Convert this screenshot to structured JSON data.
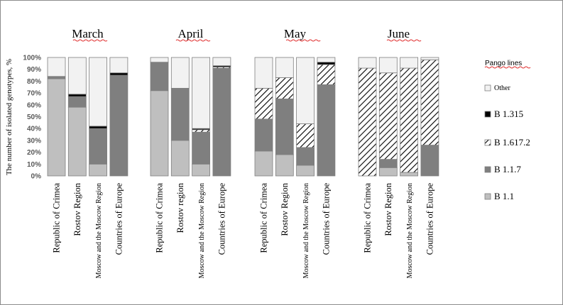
{
  "chart_data": {
    "type": "bar",
    "stacked": true,
    "percent": true,
    "ylabel": "The number of isolated genotypes, %",
    "ylim": [
      0,
      100
    ],
    "yticks": [
      "0%",
      "10%",
      "20%",
      "30%",
      "40%",
      "50%",
      "60%",
      "70%",
      "80%",
      "90%",
      "100%"
    ],
    "grid": false,
    "legend_title": "Pango lines",
    "legend_placement": "right",
    "legend": [
      "Other",
      "B 1.315",
      "B 1.617.2",
      "B 1.1.7",
      "B 1.1"
    ],
    "series_order_bottom_to_top": [
      "B 1.1",
      "B 1.1.7",
      "B 1.617.2",
      "B 1.315",
      "Other"
    ],
    "colors": {
      "B 1.1": "#bfbfbf",
      "B 1.1.7": "#7f7f7f",
      "B 1.617.2": "#ffffff",
      "B 1.315": "#000000",
      "Other": "#f2f2f2",
      "outline": "#7f7f7f",
      "title_underline": "#e03030"
    },
    "groups": [
      {
        "title": "March",
        "bars": [
          {
            "category": "Republic of Crimea",
            "values": {
              "B 1.1": 82,
              "B 1.1.7": 2,
              "B 1.617.2": 0,
              "B 1.315": 0,
              "Other": 16
            }
          },
          {
            "category": "Rostov Region",
            "values": {
              "B 1.1": 58,
              "B 1.1.7": 9,
              "B 1.617.2": 0,
              "B 1.315": 2,
              "Other": 31
            }
          },
          {
            "category": "Moscow and the Moscow Region",
            "values": {
              "B 1.1": 10,
              "B 1.1.7": 30,
              "B 1.617.2": 0,
              "B 1.315": 2,
              "Other": 58
            }
          },
          {
            "category": "Countries of Europe",
            "values": {
              "B 1.1": 0,
              "B 1.1.7": 85,
              "B 1.617.2": 0,
              "B 1.315": 2,
              "Other": 13
            }
          }
        ]
      },
      {
        "title": "April",
        "bars": [
          {
            "category": "Republic of Crimea",
            "values": {
              "B 1.1": 72,
              "B 1.1.7": 24,
              "B 1.617.2": 0,
              "B 1.315": 0,
              "Other": 4
            }
          },
          {
            "category": "Rostov region",
            "values": {
              "B 1.1": 30,
              "B 1.1.7": 44,
              "B 1.617.2": 0,
              "B 1.315": 0,
              "Other": 26
            }
          },
          {
            "category": "Moscow and the Moscow Region",
            "values": {
              "B 1.1": 10,
              "B 1.1.7": 27,
              "B 1.617.2": 2,
              "B 1.315": 1,
              "Other": 60
            }
          },
          {
            "category": "Countries of Europe",
            "values": {
              "B 1.1": 0,
              "B 1.1.7": 91,
              "B 1.617.2": 1,
              "B 1.315": 1,
              "Other": 7
            }
          }
        ]
      },
      {
        "title": "May",
        "bars": [
          {
            "category": "Republic of Crimea",
            "values": {
              "B 1.1": 21,
              "B 1.1.7": 27,
              "B 1.617.2": 26,
              "B 1.315": 0,
              "Other": 26
            }
          },
          {
            "category": "Rostov Region",
            "values": {
              "B 1.1": 18,
              "B 1.1.7": 47,
              "B 1.617.2": 18,
              "B 1.315": 0,
              "Other": 17
            }
          },
          {
            "category": "Moscow and the Moscow Region",
            "values": {
              "B 1.1": 9,
              "B 1.1.7": 15,
              "B 1.617.2": 20,
              "B 1.315": 0,
              "Other": 56
            }
          },
          {
            "category": "Countries of Europe",
            "values": {
              "B 1.1": 0,
              "B 1.1.7": 77,
              "B 1.617.2": 17,
              "B 1.315": 2,
              "Other": 4
            }
          }
        ]
      },
      {
        "title": "June",
        "bars": [
          {
            "category": "Republic of Crimea",
            "values": {
              "B 1.1": 0,
              "B 1.1.7": 0,
              "B 1.617.2": 91,
              "B 1.315": 0,
              "Other": 9
            }
          },
          {
            "category": "Rostov Region",
            "values": {
              "B 1.1": 7,
              "B 1.1.7": 7,
              "B 1.617.2": 73,
              "B 1.315": 0,
              "Other": 13
            }
          },
          {
            "category": "Moscow and the Moscow Region",
            "values": {
              "B 1.1": 3,
              "B 1.1.7": 0,
              "B 1.617.2": 88,
              "B 1.315": 0,
              "Other": 9
            }
          },
          {
            "category": "Countries of Europe",
            "values": {
              "B 1.1": 0,
              "B 1.1.7": 26,
              "B 1.617.2": 72,
              "B 1.315": 0,
              "Other": 2
            }
          }
        ]
      }
    ]
  }
}
